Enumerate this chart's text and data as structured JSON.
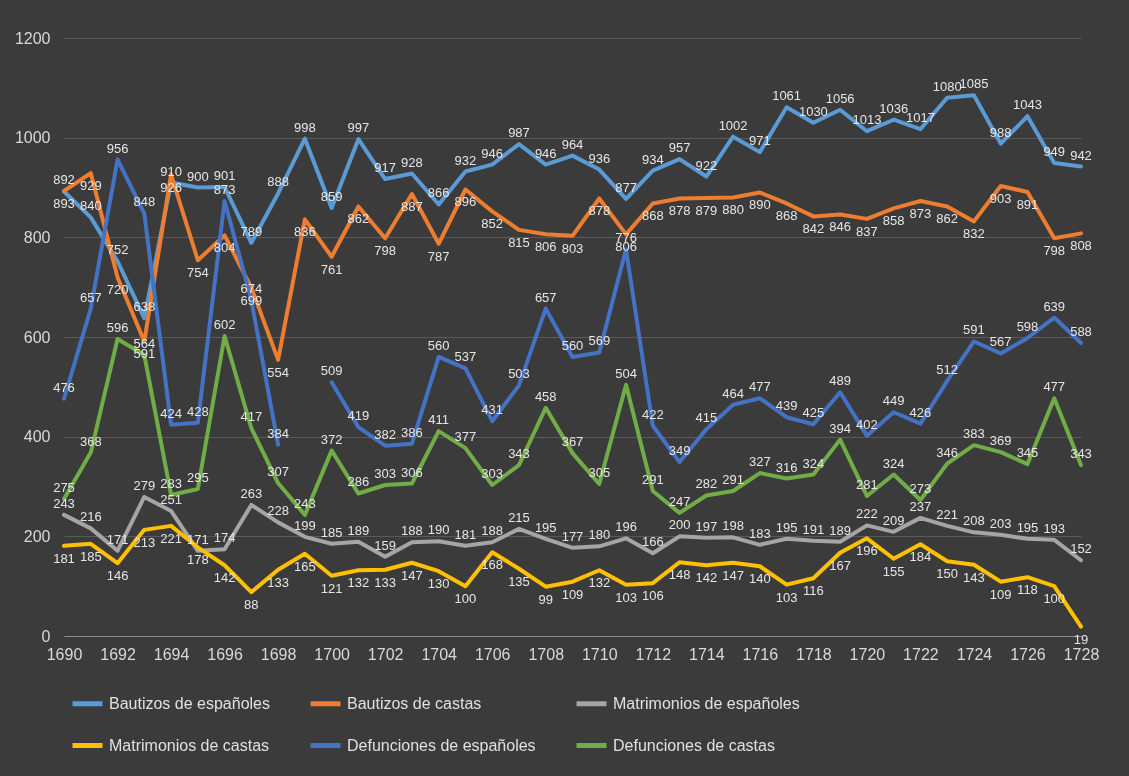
{
  "chart_data": {
    "type": "line",
    "x": [
      1690,
      1691,
      1692,
      1693,
      1694,
      1695,
      1696,
      1697,
      1698,
      1699,
      1700,
      1701,
      1702,
      1703,
      1704,
      1705,
      1706,
      1707,
      1708,
      1709,
      1710,
      1711,
      1712,
      1713,
      1714,
      1715,
      1716,
      1717,
      1718,
      1719,
      1720,
      1721,
      1722,
      1723,
      1724,
      1725,
      1726,
      1727,
      1728
    ],
    "xlim": [
      1690,
      1728
    ],
    "xticks": [
      1690,
      1692,
      1694,
      1696,
      1698,
      1700,
      1702,
      1704,
      1706,
      1708,
      1710,
      1712,
      1714,
      1716,
      1718,
      1720,
      1722,
      1724,
      1726,
      1728
    ],
    "ylim": [
      0,
      1200
    ],
    "yticks": [
      0,
      200,
      400,
      600,
      800,
      1000,
      1200
    ],
    "grid": "y",
    "legend": "bottom",
    "data_labels": true,
    "line_style": "solid",
    "series": [
      {
        "name": "Bautizos de españoles",
        "color": "#5b9bd5",
        "values": [
          892,
          840,
          752,
          638,
          910,
          900,
          901,
          789,
          888,
          998,
          859,
          997,
          917,
          928,
          866,
          932,
          946,
          987,
          946,
          964,
          936,
          877,
          934,
          957,
          922,
          1002,
          971,
          1061,
          1030,
          1056,
          1013,
          1036,
          1017,
          1080,
          1085,
          988,
          1043,
          949,
          942
        ]
      },
      {
        "name": "Bautizos de castas",
        "color": "#ed7d31",
        "values": [
          893,
          929,
          720,
          591,
          926,
          754,
          804,
          699,
          554,
          836,
          761,
          862,
          798,
          887,
          787,
          896,
          852,
          815,
          806,
          803,
          878,
          806,
          868,
          878,
          879,
          880,
          890,
          868,
          842,
          846,
          837,
          858,
          873,
          862,
          832,
          903,
          891,
          798,
          808
        ]
      },
      {
        "name": "Matrimonios de españoles",
        "color": "#a5a5a5",
        "values": [
          243,
          216,
          171,
          279,
          251,
          171,
          174,
          263,
          228,
          199,
          185,
          189,
          159,
          188,
          190,
          181,
          188,
          215,
          195,
          177,
          180,
          196,
          166,
          200,
          197,
          198,
          183,
          195,
          191,
          189,
          222,
          209,
          237,
          221,
          208,
          203,
          195,
          193,
          152
        ]
      },
      {
        "name": "Matrimonios de castas",
        "color": "#ffc000",
        "values": [
          181,
          185,
          146,
          213,
          221,
          178,
          142,
          88,
          133,
          165,
          121,
          132,
          133,
          147,
          130,
          100,
          168,
          135,
          99,
          109,
          132,
          103,
          106,
          148,
          142,
          147,
          140,
          103,
          116,
          167,
          196,
          155,
          184,
          150,
          143,
          109,
          118,
          100,
          19
        ]
      },
      {
        "name": "Defunciones de españoles",
        "color": "#4472c4",
        "values": [
          476,
          657,
          956,
          848,
          424,
          428,
          873,
          674,
          384,
          null,
          509,
          419,
          382,
          386,
          560,
          537,
          431,
          503,
          657,
          560,
          569,
          776,
          422,
          349,
          415,
          464,
          477,
          439,
          425,
          489,
          402,
          449,
          426,
          512,
          591,
          567,
          598,
          639,
          588
        ]
      },
      {
        "name": "Defunciones de castas",
        "color": "#70ad47",
        "values": [
          275,
          368,
          596,
          564,
          283,
          295,
          602,
          417,
          307,
          243,
          372,
          286,
          303,
          306,
          411,
          377,
          303,
          343,
          458,
          367,
          305,
          504,
          291,
          247,
          282,
          291,
          327,
          316,
          324,
          394,
          281,
          324,
          273,
          346,
          383,
          369,
          345,
          477,
          343
        ]
      }
    ]
  }
}
